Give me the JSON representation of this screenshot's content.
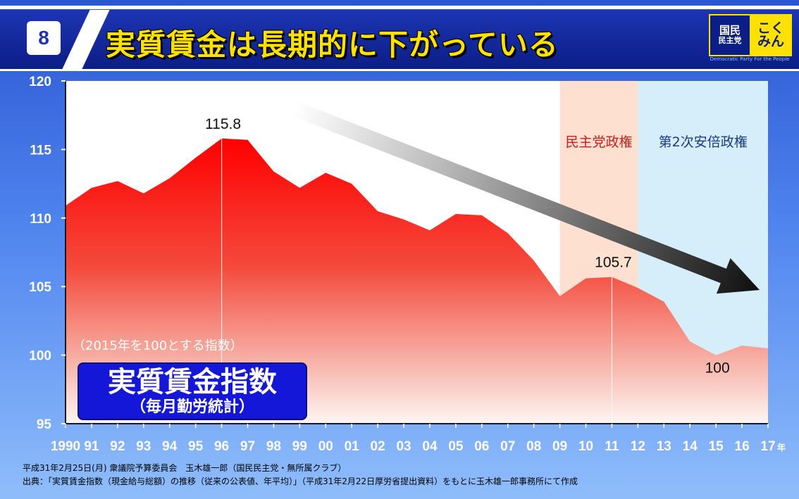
{
  "slide": {
    "number": "8",
    "title": "実質賃金は長期的に下がっている"
  },
  "logo": {
    "left_line1": "国民",
    "left_line2": "民主党",
    "right_line1": "こく",
    "right_line2": "みん",
    "tagline": "Democratic Party For the People"
  },
  "chart_data": {
    "type": "area",
    "x": [
      "1990",
      "91",
      "92",
      "93",
      "94",
      "95",
      "96",
      "97",
      "98",
      "99",
      "00",
      "01",
      "02",
      "03",
      "04",
      "05",
      "06",
      "07",
      "08",
      "09",
      "10",
      "11",
      "12",
      "13",
      "14",
      "15",
      "16",
      "17"
    ],
    "x_unit": "年",
    "series": [
      {
        "values": [
          110.9,
          112.2,
          112.7,
          111.8,
          112.9,
          114.4,
          115.8,
          115.7,
          113.4,
          112.2,
          113.3,
          112.5,
          110.5,
          109.9,
          109.1,
          110.3,
          110.2,
          108.9,
          106.9,
          104.3,
          105.6,
          105.7,
          104.9,
          103.9,
          101.0,
          100.0,
          100.7,
          100.5
        ]
      }
    ],
    "ylim": [
      95,
      120
    ],
    "yticks": [
      95,
      100,
      105,
      110,
      115,
      120
    ],
    "annotations": [
      {
        "x": "96",
        "y": 115.8,
        "label": "115.8"
      },
      {
        "x": "11",
        "y": 105.7,
        "label": "105.7"
      },
      {
        "x": "15",
        "y": 100.0,
        "label": "100"
      }
    ],
    "periods": [
      {
        "label": "民主党政権",
        "from": "09",
        "to": "12",
        "color": "#fde0cf",
        "text_color": "#d11a1a"
      },
      {
        "label": "第2次安倍政権",
        "from": "12",
        "to": "17",
        "color": "#d6eefa",
        "text_color": "#1a3a8a"
      }
    ],
    "note": "（2015年を100とする指数）",
    "box_title": "実質賃金指数",
    "box_subtitle": "（毎月勤労統計）",
    "trend_arrow": {
      "from": "97",
      "to": "17",
      "direction": "down"
    },
    "colors": {
      "area_top": "#ff0000",
      "area_bottom": "#ffffff",
      "plot_bg": "#ffffff"
    }
  },
  "footer": {
    "line1": "平成31年2月25日(月) 衆議院予算委員会　玉木雄一郎（国民民主党・無所属クラブ）",
    "line2": "出典：「実質賃金指数（現金給与総額）の推移（従来の公表値、年平均）」（平成31年2月22日厚労省提出資料）をもとに玉木雄一郎事務所にて作成"
  }
}
